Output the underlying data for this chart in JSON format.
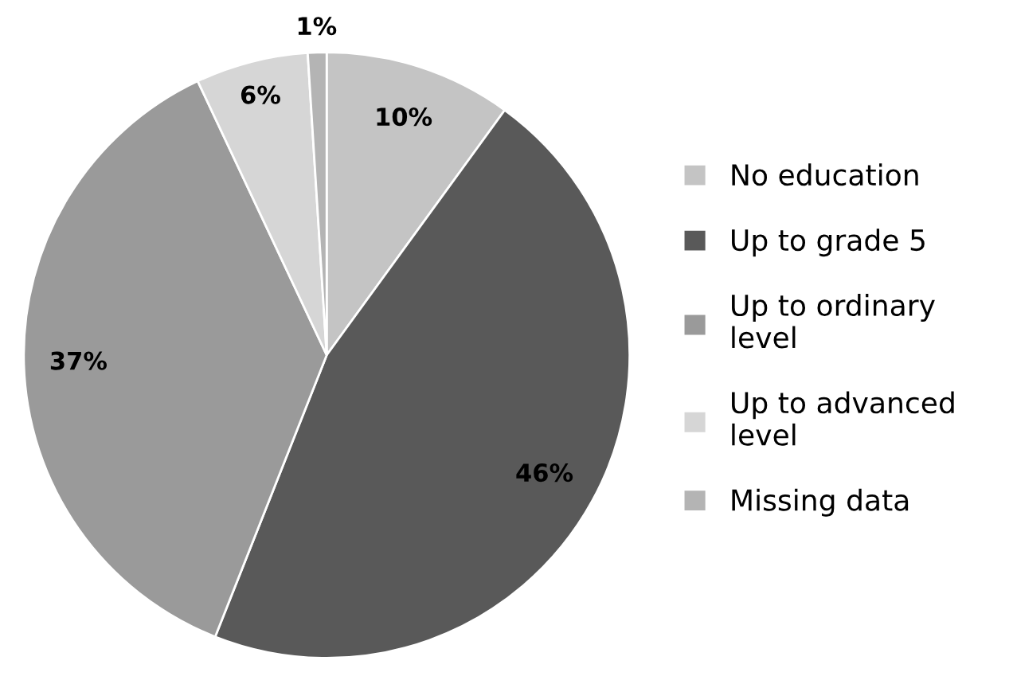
{
  "chart_data": {
    "type": "pie",
    "categories": [
      "No education",
      "Up to grade 5",
      "Up to ordinary level",
      "Up to advanced level",
      "Missing data"
    ],
    "values": [
      10,
      46,
      37,
      6,
      1
    ],
    "colors": [
      "#c4c4c4",
      "#595959",
      "#9a9a9a",
      "#d6d6d6",
      "#b4b4b4"
    ],
    "value_labels": [
      "10%",
      "46%",
      "37%",
      "6%",
      "1%"
    ],
    "legend": "right"
  }
}
